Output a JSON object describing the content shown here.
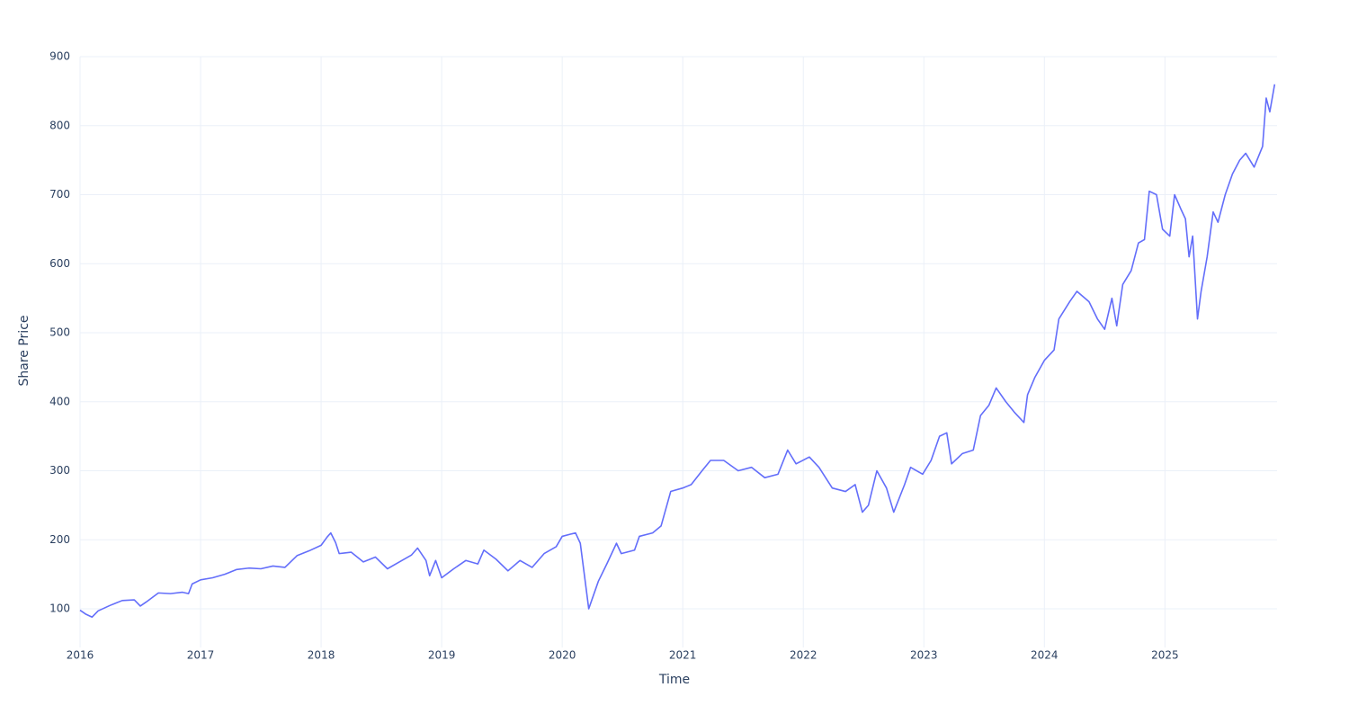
{
  "chart_data": {
    "type": "line",
    "x_label": "Time",
    "y_label": "Share Price",
    "x": [
      2016.0,
      2016.05,
      2016.1,
      2016.15,
      2016.25,
      2016.35,
      2016.45,
      2016.5,
      2016.55,
      2016.65,
      2016.75,
      2016.85,
      2016.9,
      2016.93,
      2017.0,
      2017.1,
      2017.2,
      2017.3,
      2017.4,
      2017.5,
      2017.6,
      2017.7,
      2017.8,
      2017.9,
      2018.0,
      2018.05,
      2018.08,
      2018.12,
      2018.15,
      2018.25,
      2018.35,
      2018.45,
      2018.55,
      2018.65,
      2018.75,
      2018.8,
      2018.87,
      2018.9,
      2018.95,
      2019.0,
      2019.1,
      2019.2,
      2019.3,
      2019.35,
      2019.45,
      2019.55,
      2019.65,
      2019.75,
      2019.85,
      2019.95,
      2020.0,
      2020.11,
      2020.15,
      2020.22,
      2020.3,
      2020.37,
      2020.45,
      2020.49,
      2020.6,
      2020.64,
      2020.75,
      2020.82,
      2020.9,
      2021.0,
      2021.07,
      2021.16,
      2021.23,
      2021.34,
      2021.46,
      2021.57,
      2021.68,
      2021.79,
      2021.87,
      2021.94,
      2022.05,
      2022.13,
      2022.24,
      2022.35,
      2022.43,
      2022.49,
      2022.54,
      2022.61,
      2022.69,
      2022.75,
      2022.84,
      2022.89,
      2022.99,
      2023.06,
      2023.13,
      2023.19,
      2023.23,
      2023.32,
      2023.41,
      2023.47,
      2023.54,
      2023.6,
      2023.68,
      2023.75,
      2023.83,
      2023.86,
      2023.92,
      2024.0,
      2024.08,
      2024.12,
      2024.21,
      2024.27,
      2024.37,
      2024.44,
      2024.5,
      2024.56,
      2024.6,
      2024.65,
      2024.72,
      2024.78,
      2024.83,
      2024.87,
      2024.93,
      2024.98,
      2025.04,
      2025.08,
      2025.13,
      2025.17,
      2025.2,
      2025.23,
      2025.27,
      2025.3,
      2025.35,
      2025.4,
      2025.44,
      2025.5,
      2025.56,
      2025.62,
      2025.67,
      2025.74,
      2025.81,
      2025.84,
      2025.87,
      2025.91
    ],
    "series": [
      {
        "name": "Share Price",
        "color": "#636efa",
        "values": [
          98,
          92,
          88,
          97,
          105,
          112,
          113,
          104,
          110,
          123,
          122,
          124,
          122,
          136,
          142,
          145,
          150,
          157,
          159,
          158,
          162,
          160,
          177,
          184,
          192,
          204,
          210,
          196,
          180,
          182,
          168,
          175,
          158,
          168,
          178,
          188,
          170,
          148,
          170,
          145,
          158,
          170,
          165,
          185,
          172,
          155,
          170,
          160,
          180,
          190,
          205,
          210,
          195,
          100,
          140,
          165,
          195,
          180,
          185,
          205,
          210,
          220,
          270,
          275,
          280,
          300,
          315,
          315,
          300,
          305,
          290,
          295,
          330,
          310,
          320,
          305,
          275,
          270,
          280,
          240,
          250,
          300,
          275,
          240,
          280,
          305,
          295,
          315,
          350,
          355,
          310,
          325,
          330,
          380,
          395,
          420,
          400,
          385,
          370,
          410,
          435,
          460,
          475,
          520,
          545,
          560,
          545,
          520,
          505,
          550,
          510,
          570,
          590,
          630,
          635,
          705,
          700,
          650,
          640,
          700,
          680,
          665,
          610,
          640,
          520,
          560,
          610,
          675,
          660,
          700,
          730,
          750,
          760,
          740,
          770,
          840,
          820,
          860
        ]
      }
    ],
    "xlim": [
      2016,
      2025.93
    ],
    "xticks": [
      2016,
      2017,
      2018,
      2019,
      2020,
      2021,
      2022,
      2023,
      2024,
      2025
    ],
    "ylim": [
      44,
      900
    ],
    "yticks": [
      100,
      200,
      300,
      400,
      500,
      600,
      700,
      800,
      900
    ],
    "grid": true
  }
}
